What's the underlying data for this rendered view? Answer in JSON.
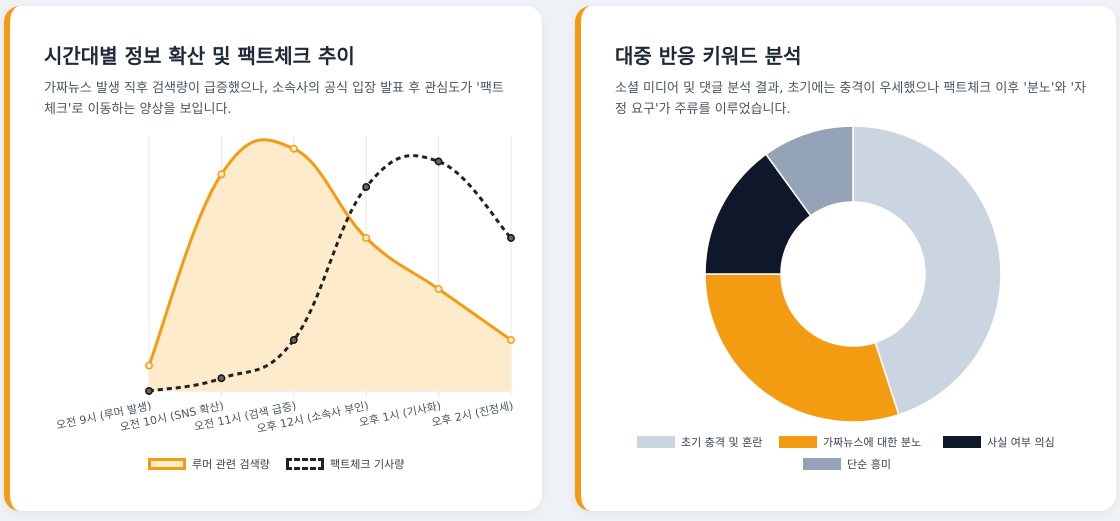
{
  "line_card": {
    "title": "시간대별 정보 확산 및 팩트체크 추이",
    "description": "가짜뉴스 발생 직후 검색량이 급증했으나, 소속사의 공식 입장 발표 후 관심도가 '팩트체크'로 이동하는 양상을 보입니다."
  },
  "donut_card": {
    "title": "대중 반응 키워드 분석",
    "description": "소셜 미디어 및 댓글 분석 결과, 초기에는 충격이 우세했으나 팩트체크 이후 '분노'와 '자정 요구'가 주류를 이루었습니다."
  },
  "colors": {
    "accent": "#f39c12",
    "rumor_fill": "#fdebcb",
    "factcheck": "#222222",
    "slice_shock": "#cbd5e1",
    "slice_anger": "#f39c12",
    "slice_doubt": "#0f172a",
    "slice_curiosity": "#94a3b8"
  },
  "chart_data": [
    {
      "type": "line",
      "categories": [
        "오전 9시 (루머 발생)",
        "오전 10시 (SNS 확산)",
        "오전 11시 (검색 급증)",
        "오후 12시 (소속사 부인)",
        "오후 1시 (기사화)",
        "오후 2시 (진정세)"
      ],
      "series": [
        {
          "name": "루머 관련 검색량",
          "values": [
            10,
            85,
            95,
            60,
            40,
            20
          ],
          "style": "solid",
          "fill": true
        },
        {
          "name": "팩트체크 기사량",
          "values": [
            0,
            5,
            20,
            80,
            90,
            60
          ],
          "style": "dashed",
          "fill": false
        }
      ],
      "ylim": [
        0,
        100
      ],
      "grid": "vertical",
      "legend": "bottom",
      "smooth": true
    },
    {
      "type": "pie",
      "donut": true,
      "labels": [
        "초기 충격 및 혼란",
        "가짜뉴스에 대한 분노",
        "사실 여부 의심",
        "단순 흥미"
      ],
      "values": [
        45,
        30,
        15,
        10
      ],
      "legend": "bottom"
    }
  ]
}
